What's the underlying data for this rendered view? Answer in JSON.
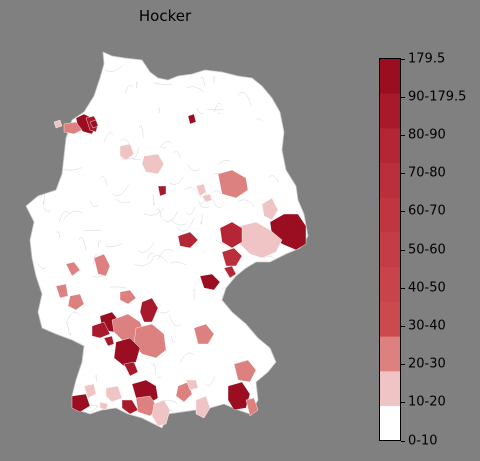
{
  "title": "Hocker",
  "legend": {
    "labels": [
      "179.5",
      "90-179.5",
      "80-90",
      "70-80",
      "60-70",
      "50-60",
      "40-50",
      "30-40",
      "20-30",
      "10-20",
      "0-10"
    ],
    "bins": [
      {
        "color": "#ffffff"
      },
      {
        "color": "#f0c4c4"
      },
      {
        "color": "#dc8080"
      },
      {
        "color": "#cc4a4e"
      },
      {
        "color": "#c8434a"
      },
      {
        "color": "#c43c45"
      },
      {
        "color": "#c03540"
      },
      {
        "color": "#bb2e3b"
      },
      {
        "color": "#b42535"
      },
      {
        "color": "#a8192b"
      },
      {
        "color": "#9b0e22"
      }
    ]
  },
  "map": {
    "background": "#808080",
    "land_fill": "#ffffff",
    "border_color": "#c8c8c8",
    "regions": [
      {
        "name": "nordfriesland",
        "bin": 10
      },
      {
        "name": "nordfriesland-south",
        "bin": 2
      },
      {
        "name": "west-coast",
        "bin": 1
      },
      {
        "name": "north-coast",
        "bin": 10
      },
      {
        "name": "north-coast-b",
        "bin": 9
      },
      {
        "name": "rostock-area",
        "bin": 10
      },
      {
        "name": "hamburg-south",
        "bin": 1
      },
      {
        "name": "lueneburg",
        "bin": 1
      },
      {
        "name": "mid-north",
        "bin": 1
      },
      {
        "name": "brandenburg-se",
        "bin": 2
      },
      {
        "name": "magdeburg-area",
        "bin": 9
      },
      {
        "name": "halle-area",
        "bin": 1
      },
      {
        "name": "goerlitz",
        "bin": 10
      },
      {
        "name": "dresden-east",
        "bin": 1
      },
      {
        "name": "dresden",
        "bin": 1
      },
      {
        "name": "meissen",
        "bin": 8
      },
      {
        "name": "saxony-mid",
        "bin": 7
      },
      {
        "name": "zwickau",
        "bin": 8
      },
      {
        "name": "thuringia-east",
        "bin": 10
      },
      {
        "name": "kassel-area",
        "bin": 8
      },
      {
        "name": "hessen-mid",
        "bin": 2
      },
      {
        "name": "ruhr-east",
        "bin": 1
      },
      {
        "name": "westerwald",
        "bin": 2
      },
      {
        "name": "rhineland",
        "bin": 2
      },
      {
        "name": "frankfurt-south",
        "bin": 1
      },
      {
        "name": "franken-west",
        "bin": 8
      },
      {
        "name": "palatinate",
        "bin": 10
      },
      {
        "name": "karlsruhe",
        "bin": 9
      },
      {
        "name": "stuttgart",
        "bin": 2
      },
      {
        "name": "heilbronn",
        "bin": 1
      },
      {
        "name": "swabia-alb",
        "bin": 10
      },
      {
        "name": "ulm",
        "bin": 2
      },
      {
        "name": "nuremberg-area",
        "bin": 2
      },
      {
        "name": "bavaria-east",
        "bin": 2
      },
      {
        "name": "passau",
        "bin": 2
      },
      {
        "name": "black-forest",
        "bin": 9
      },
      {
        "name": "lake-constance",
        "bin": 10
      },
      {
        "name": "allgaeu",
        "bin": 1
      },
      {
        "name": "oberbayern-west",
        "bin": 2
      },
      {
        "name": "munich-area",
        "bin": 1
      },
      {
        "name": "rosenheim",
        "bin": 10
      },
      {
        "name": "berchtesgaden",
        "bin": 2
      },
      {
        "name": "bodensee-west",
        "bin": 9
      },
      {
        "name": "garmisch",
        "bin": 1
      }
    ]
  }
}
